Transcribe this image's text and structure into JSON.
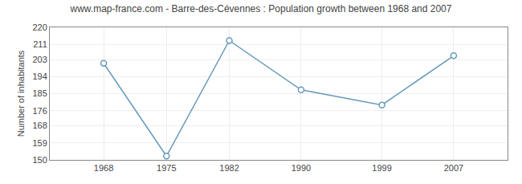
{
  "chart_data": {
    "type": "line",
    "title": "www.map-france.com - Barre-des-Cévennes : Population growth between 1968 and 2007",
    "ylabel": "Number of inhabitants",
    "x": [
      1968,
      1975,
      1982,
      1990,
      1999,
      2007
    ],
    "values": [
      201,
      152,
      213,
      187,
      179,
      205
    ],
    "color": "#6699bb",
    "marker": "circle",
    "xlim": [
      1962,
      2013
    ],
    "xticks": [
      1968,
      1975,
      1982,
      1990,
      1999,
      2007
    ],
    "ylim": [
      150,
      220
    ],
    "yticks": [
      150,
      159,
      168,
      176,
      185,
      194,
      203,
      211,
      220
    ],
    "grid": true
  }
}
